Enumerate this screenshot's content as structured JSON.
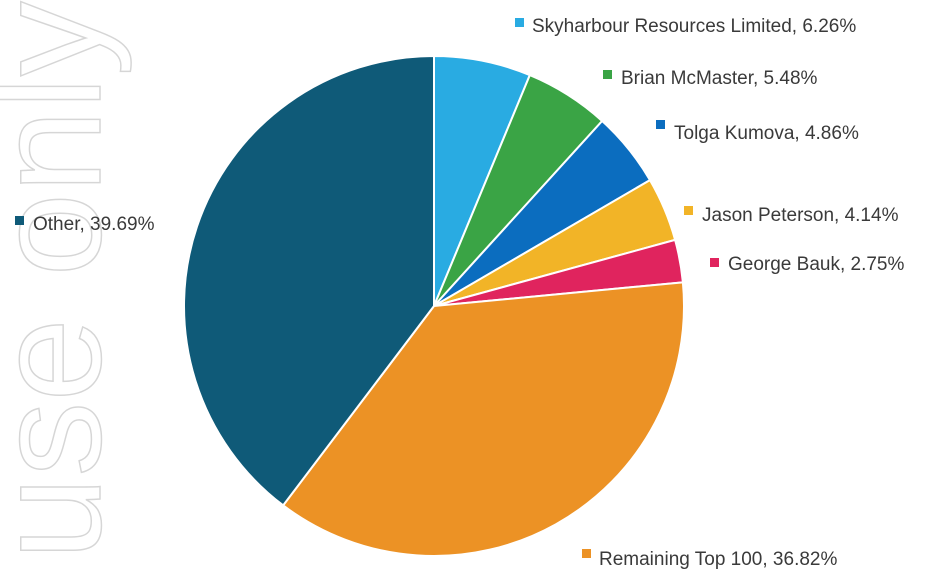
{
  "watermark": {
    "text": "use only"
  },
  "chart_data": {
    "type": "pie",
    "title": "",
    "slices": [
      {
        "label": "Skyharbour Resources Limited, 6.26%",
        "value": 6.26,
        "color": "#29abe2"
      },
      {
        "label": "Brian McMaster, 5.48%",
        "value": 5.48,
        "color": "#3aa445"
      },
      {
        "label": "Tolga Kumova, 4.86%",
        "value": 4.86,
        "color": "#0b6dbf"
      },
      {
        "label": "Jason Peterson, 4.14%",
        "value": 4.14,
        "color": "#f2b427"
      },
      {
        "label": "George Bauk, 2.75%",
        "value": 2.75,
        "color": "#e0245e"
      },
      {
        "label": "Remaining Top 100, 36.82%",
        "value": 36.82,
        "color": "#ec9225"
      },
      {
        "label": "Other, 39.69%",
        "value": 39.69,
        "color": "#0f5a78"
      }
    ]
  }
}
